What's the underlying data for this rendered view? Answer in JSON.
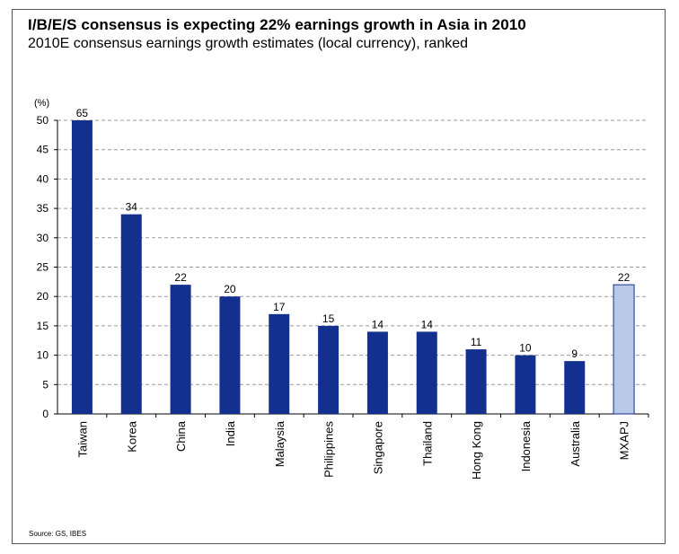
{
  "header": {
    "title": "I/B/E/S consensus is expecting 22% earnings growth in Asia in 2010",
    "subtitle": "2010E consensus earnings growth estimates (local currency), ranked"
  },
  "footer": {
    "source": "Source: GS, IBES"
  },
  "colors": {
    "bar": "#14308f",
    "highlight_bar": "#b8c8e6",
    "gridline": "#9a9a9a"
  },
  "chart_data": {
    "type": "bar",
    "ylabel": "(%)",
    "ylim": [
      0,
      50
    ],
    "yticks": [
      0,
      5,
      10,
      15,
      20,
      25,
      30,
      35,
      40,
      45,
      50
    ],
    "grid": true,
    "categories": [
      "Taiwan",
      "Korea",
      "China",
      "India",
      "Malaysia",
      "Philippines",
      "Singapore",
      "Thailand",
      "Hong Kong",
      "Indonesia",
      "Australia",
      "MXAPJ"
    ],
    "values": [
      65,
      34,
      22,
      20,
      17,
      15,
      14,
      14,
      11,
      10,
      9,
      22
    ],
    "data_labels": [
      "65",
      "34",
      "22",
      "20",
      "17",
      "15",
      "14",
      "14",
      "11",
      "10",
      "9",
      "22"
    ],
    "highlighted": [
      "MXAPJ"
    ]
  }
}
